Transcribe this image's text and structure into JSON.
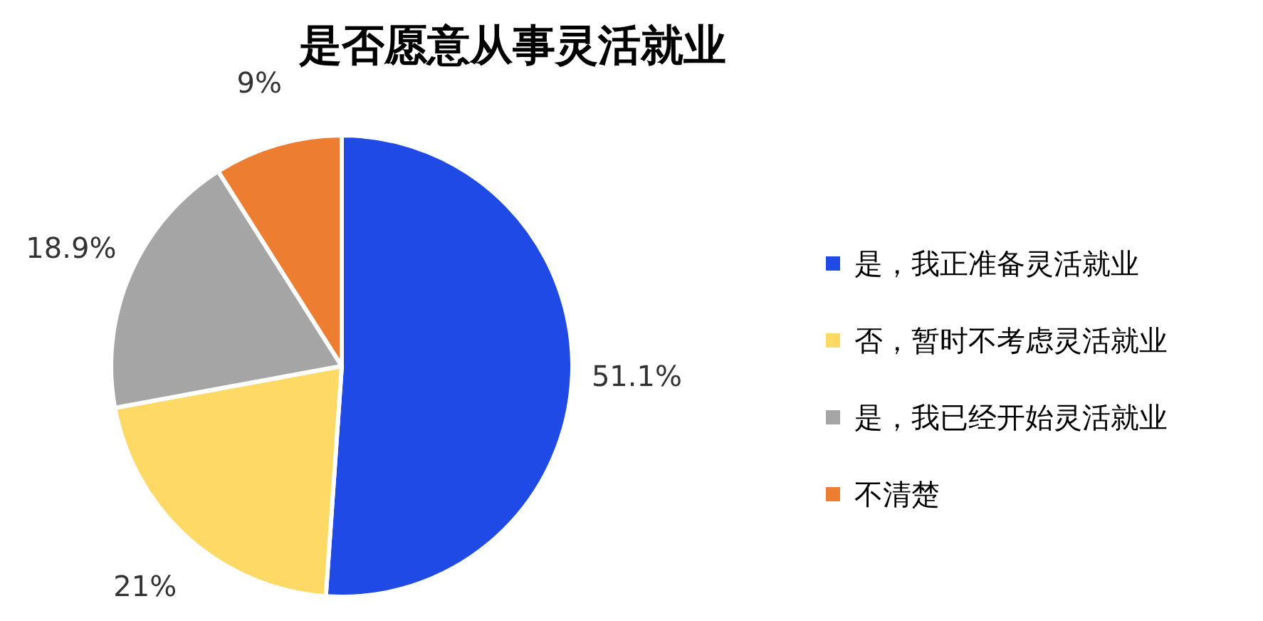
{
  "chart_data": {
    "type": "pie",
    "title": "是否愿意从事灵活就业",
    "categories": [
      "是，我正准备灵活就业",
      "否，暂时不考虑灵活就业",
      "是，我已经开始灵活就业",
      "不清楚"
    ],
    "values": [
      51.1,
      21,
      18.9,
      9
    ],
    "colors": [
      "#1f4ae6",
      "#ffd966",
      "#a5a5a5",
      "#ed7d31"
    ],
    "value_labels": [
      "51.1%",
      "21%",
      "18.9%",
      "9%"
    ],
    "legend": "right"
  }
}
